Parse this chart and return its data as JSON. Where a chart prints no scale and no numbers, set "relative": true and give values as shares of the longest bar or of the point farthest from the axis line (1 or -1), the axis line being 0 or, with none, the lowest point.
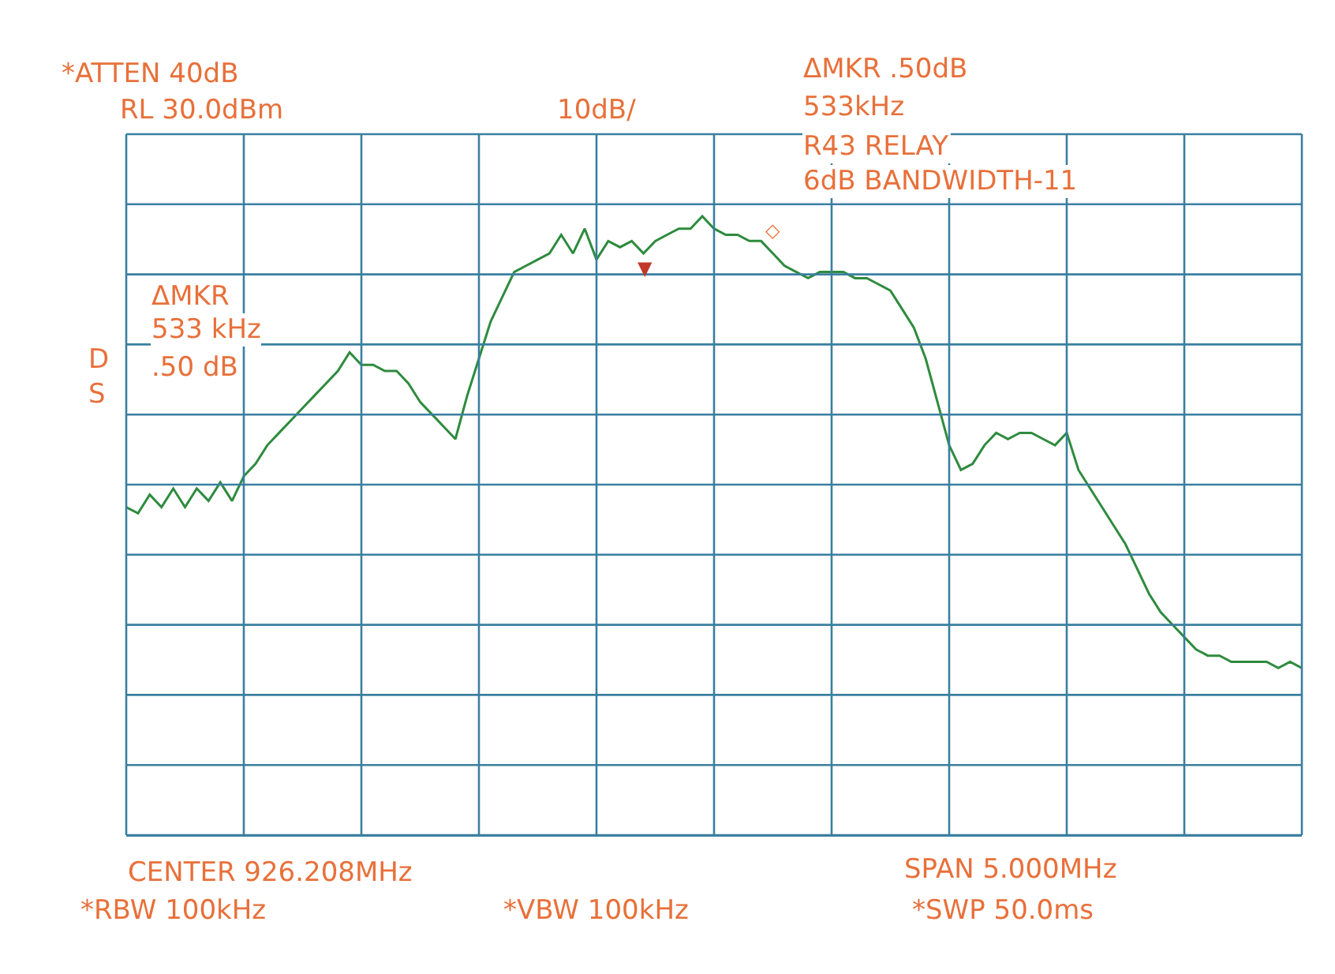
{
  "chart_data": {
    "type": "line",
    "relative": true,
    "grid": true,
    "categories": [
      null,
      null,
      null,
      null,
      null,
      null,
      null,
      null,
      null,
      null,
      null,
      null,
      null,
      null,
      null,
      null,
      null,
      null,
      null,
      null,
      null,
      null,
      null,
      null,
      null,
      null,
      null,
      null,
      null,
      null,
      null,
      null,
      null,
      null,
      null,
      null,
      null,
      null,
      null,
      null,
      null,
      null,
      null,
      null,
      null,
      null,
      null,
      null,
      null,
      null,
      null,
      null,
      null,
      null,
      null,
      null,
      null,
      null,
      null,
      null,
      null,
      null,
      null,
      null,
      null,
      null,
      null,
      null,
      null,
      null,
      null,
      null,
      null,
      null,
      null,
      null,
      null,
      null,
      null,
      null,
      null,
      null,
      null,
      null,
      null,
      null,
      null,
      null,
      null,
      null,
      null,
      null,
      null,
      null,
      null,
      null,
      null,
      null,
      null,
      null,
      null
    ],
    "series": [
      {
        "color": "#2e8b3e",
        "values": [
          0.53,
          0.52,
          0.55,
          0.53,
          0.56,
          0.53,
          0.56,
          0.54,
          0.57,
          0.54,
          0.58,
          0.6,
          0.63,
          0.65,
          0.67,
          0.69,
          0.71,
          0.73,
          0.75,
          0.78,
          0.76,
          0.76,
          0.75,
          0.75,
          0.73,
          0.7,
          0.68,
          0.66,
          0.64,
          0.71,
          0.77,
          0.83,
          0.87,
          0.91,
          0.92,
          0.93,
          0.94,
          0.97,
          0.94,
          0.98,
          0.93,
          0.96,
          0.95,
          0.96,
          0.94,
          0.96,
          0.97,
          0.98,
          0.98,
          1.0,
          0.98,
          0.97,
          0.97,
          0.96,
          0.96,
          0.94,
          0.92,
          0.91,
          0.9,
          0.91,
          0.91,
          0.91,
          0.9,
          0.9,
          0.89,
          0.88,
          0.85,
          0.82,
          0.77,
          0.7,
          0.63,
          0.59,
          0.6,
          0.63,
          0.65,
          0.64,
          0.65,
          0.65,
          0.64,
          0.63,
          0.65,
          0.59,
          0.56,
          0.53,
          0.5,
          0.47,
          0.43,
          0.39,
          0.36,
          0.34,
          0.32,
          0.3,
          0.29,
          0.29,
          0.28,
          0.28,
          0.28,
          0.28,
          0.27,
          0.28,
          0.27
        ]
      }
    ],
    "annotations": [
      "▼",
      "◇",
      "*ATTEN 40dB",
      "RL 30.0dBm",
      "10dB/",
      "ΔMKR .50dB",
      "533kHz",
      "R43 RELAY",
      "6dB BANDWIDTH-11",
      "ΔMKR",
      "533 kHz",
      ".50 dB",
      "D",
      "S",
      "CENTER 926.208MHz",
      "SPAN 5.000MHz",
      "*RBW 100kHz",
      "*VBW 100kHz",
      "*SWP 50.0ms"
    ]
  }
}
